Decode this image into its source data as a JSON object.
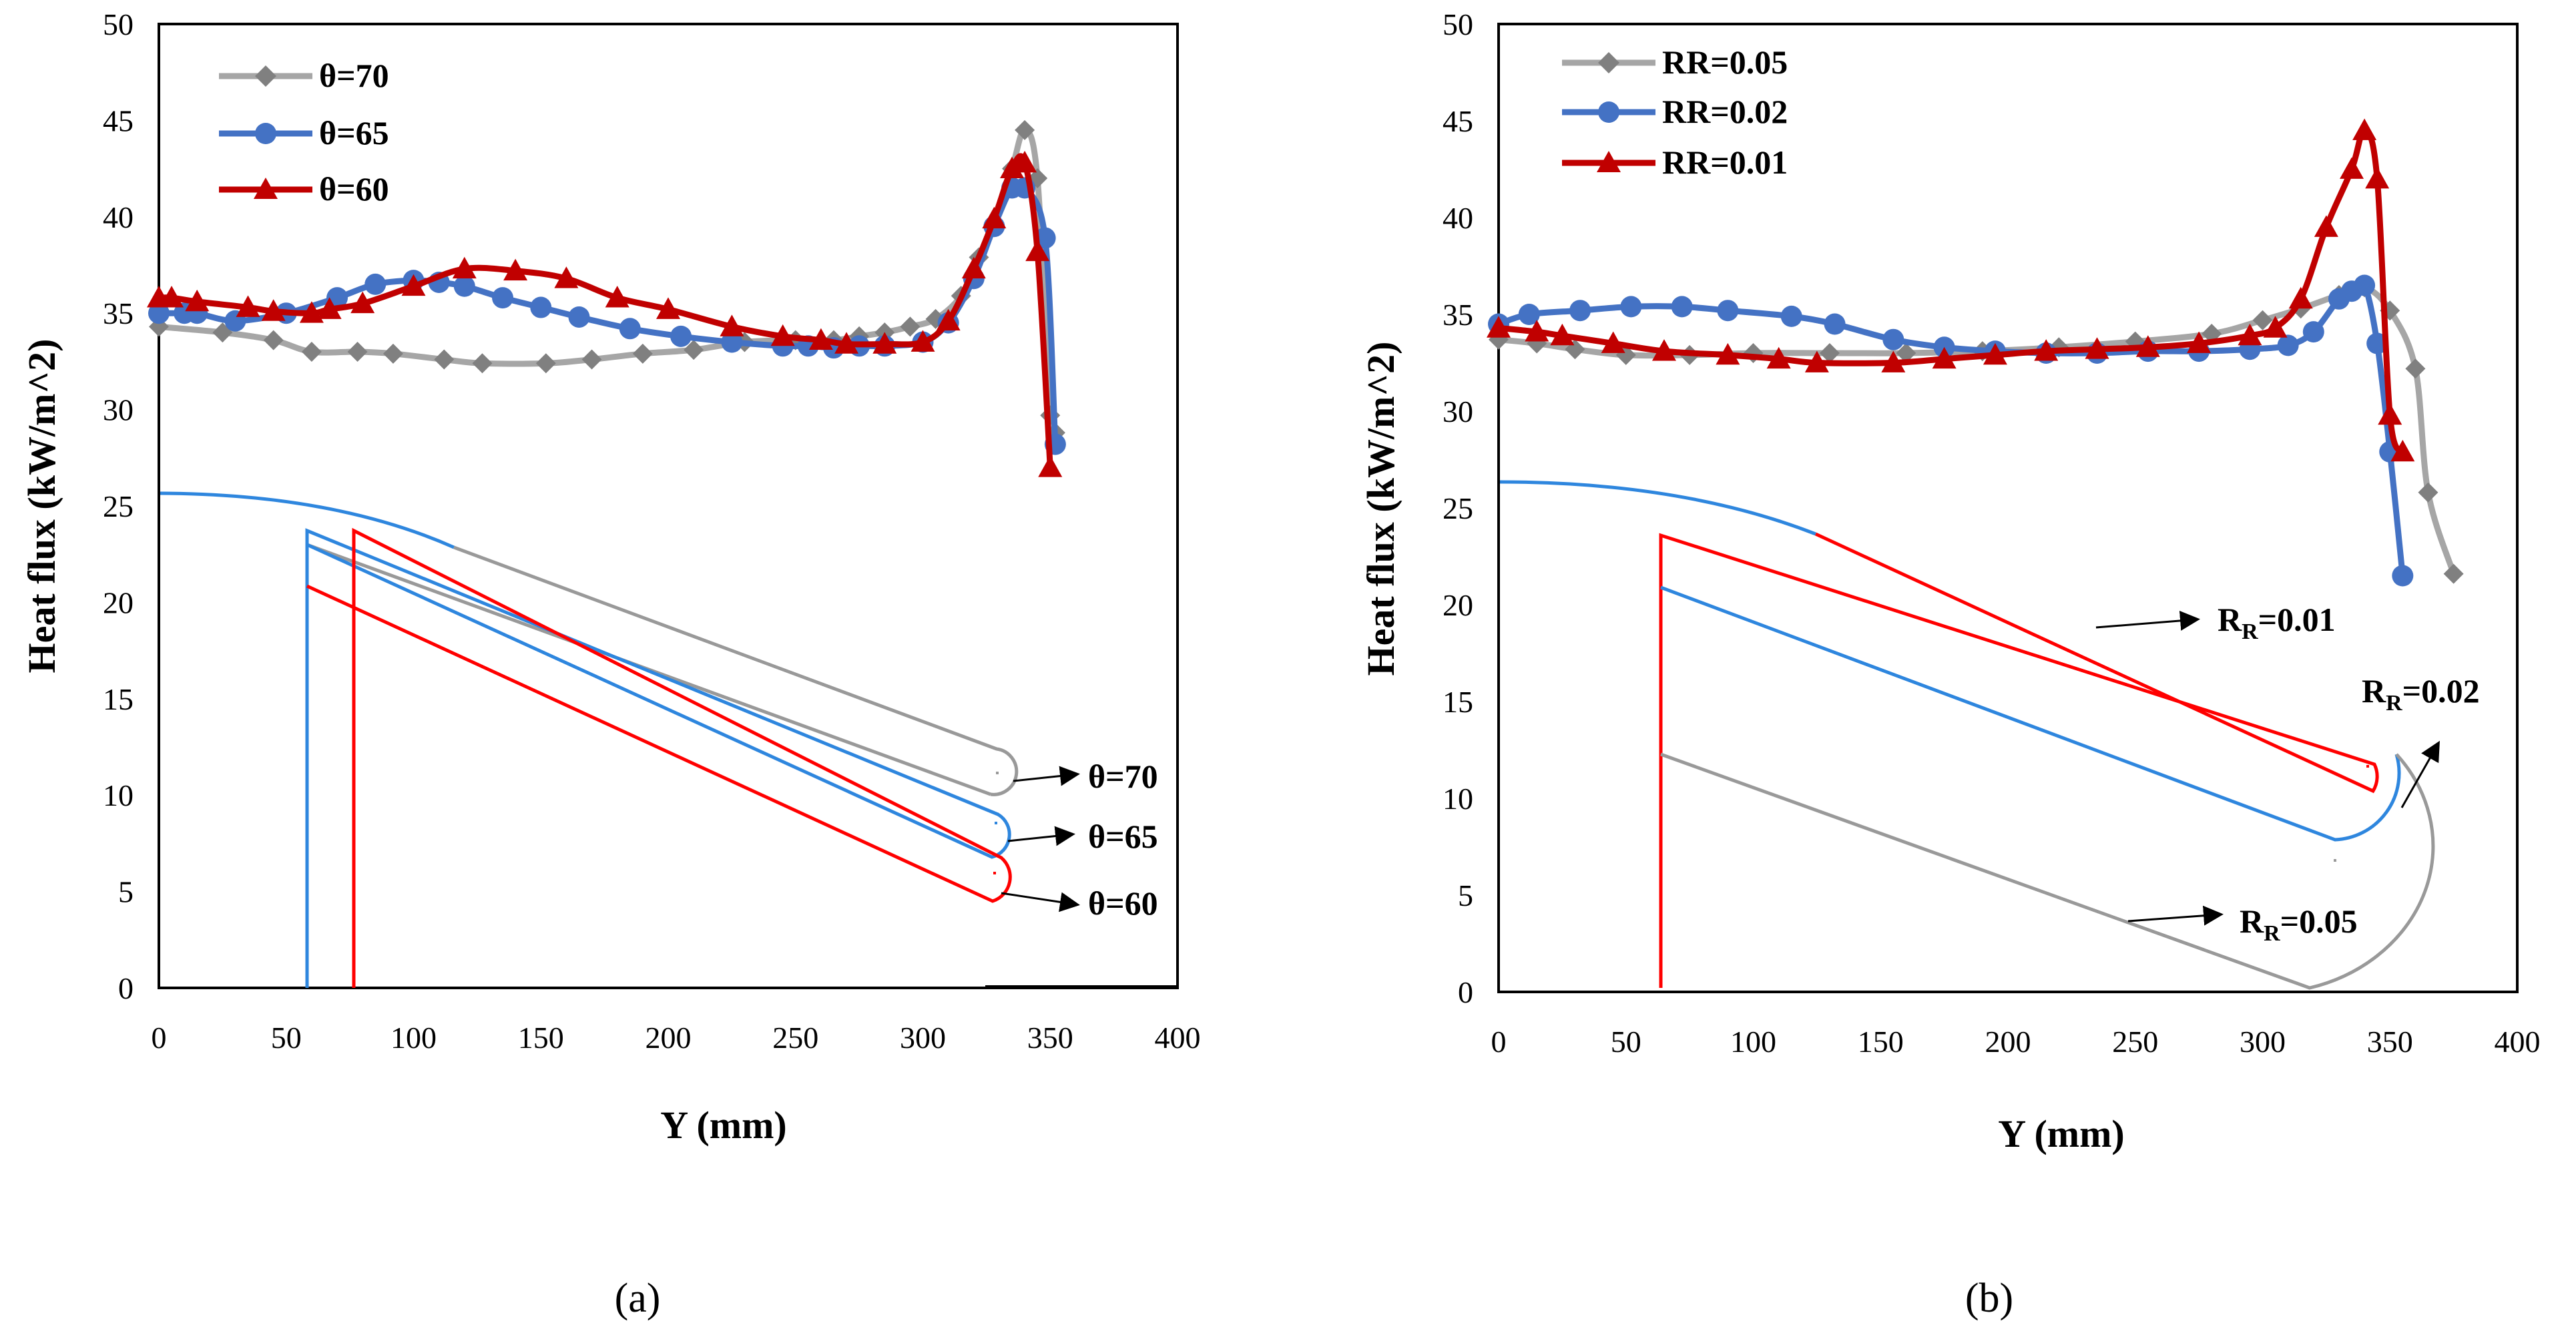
{
  "chart_data": [
    {
      "type": "line",
      "panel_label": "a",
      "caption": "(a)",
      "xlabel": "Y (mm)",
      "ylabel": "Heat flux (kW/m^2)",
      "xlim": [
        0,
        400
      ],
      "ylim": [
        0,
        50
      ],
      "xticks": [
        "0",
        "50",
        "100",
        "150",
        "200",
        "250",
        "300",
        "350",
        "400"
      ],
      "yticks": [
        "0",
        "5",
        "10",
        "15",
        "20",
        "25",
        "30",
        "35",
        "40",
        "45",
        "50"
      ],
      "legend_position": "top-left",
      "series": [
        {
          "name": "θ=70",
          "color": "#a6a6a6",
          "marker_color": "#808080",
          "marker": "diamond",
          "x": [
            0,
            25,
            45,
            60,
            78,
            92,
            112,
            127,
            152,
            170,
            190,
            210,
            230,
            250,
            265,
            275,
            285,
            295,
            305,
            315,
            322,
            328,
            335,
            340,
            345,
            350,
            352
          ],
          "y": [
            34.3,
            34.0,
            33.6,
            33.0,
            33.0,
            32.9,
            32.6,
            32.4,
            32.4,
            32.6,
            32.9,
            33.1,
            33.5,
            33.6,
            33.6,
            33.8,
            34.0,
            34.3,
            34.7,
            35.9,
            37.9,
            39.7,
            42.5,
            44.5,
            42.0,
            29.7,
            28.8
          ]
        },
        {
          "name": "θ=65",
          "color": "#4472c4",
          "marker_color": "#4472c4",
          "marker": "circle",
          "x": [
            0,
            10,
            15,
            30,
            50,
            70,
            85,
            100,
            110,
            120,
            135,
            150,
            165,
            185,
            205,
            225,
            245,
            255,
            265,
            275,
            285,
            300,
            310,
            320,
            328,
            335,
            340,
            348,
            352
          ],
          "y": [
            35.0,
            35.0,
            35.0,
            34.6,
            35.0,
            35.8,
            36.5,
            36.7,
            36.6,
            36.4,
            35.8,
            35.3,
            34.8,
            34.2,
            33.8,
            33.5,
            33.3,
            33.3,
            33.2,
            33.3,
            33.3,
            33.5,
            34.5,
            36.8,
            39.5,
            41.5,
            41.5,
            38.9,
            28.2
          ]
        },
        {
          "name": "θ=60",
          "color": "#c00000",
          "marker_color": "#c00000",
          "marker": "triangle",
          "x": [
            0,
            5,
            15,
            35,
            45,
            60,
            67,
            80,
            100,
            120,
            140,
            160,
            180,
            200,
            225,
            245,
            260,
            270,
            285,
            300,
            310,
            320,
            328,
            335,
            340,
            345,
            350
          ],
          "y": [
            35.8,
            35.8,
            35.6,
            35.3,
            35.1,
            35.0,
            35.2,
            35.5,
            36.4,
            37.3,
            37.2,
            36.8,
            35.8,
            35.2,
            34.3,
            33.8,
            33.6,
            33.4,
            33.4,
            33.5,
            34.6,
            37.3,
            39.9,
            42.5,
            42.8,
            38.2,
            27.0
          ]
        }
      ],
      "inset_annotations": [
        "θ=70",
        "θ=65",
        "θ=60"
      ]
    },
    {
      "type": "line",
      "panel_label": "b",
      "caption": "(b)",
      "xlabel": "Y (mm)",
      "ylabel": "Heat flux (kW/m^2)",
      "xlim": [
        0,
        400
      ],
      "ylim": [
        0,
        50
      ],
      "xticks": [
        "0",
        "50",
        "100",
        "150",
        "200",
        "250",
        "300",
        "350",
        "400"
      ],
      "yticks": [
        "0",
        "5",
        "10",
        "15",
        "20",
        "25",
        "30",
        "35",
        "40",
        "45",
        "50"
      ],
      "legend_position": "top-left",
      "series": [
        {
          "name": "RR=0.05",
          "color": "#a6a6a6",
          "marker_color": "#808080",
          "marker": "diamond",
          "x": [
            0,
            15,
            30,
            50,
            75,
            100,
            130,
            160,
            190,
            220,
            250,
            280,
            300,
            315,
            330,
            340,
            350,
            360,
            365,
            375
          ],
          "y": [
            33.7,
            33.5,
            33.2,
            32.9,
            32.9,
            33.0,
            33.0,
            33.0,
            33.1,
            33.3,
            33.6,
            34.0,
            34.7,
            35.3,
            36.0,
            36.4,
            35.2,
            32.2,
            25.8,
            21.6
          ]
        },
        {
          "name": "RR=0.02",
          "color": "#4472c4",
          "marker_color": "#4472c4",
          "marker": "circle",
          "x": [
            0,
            12,
            32,
            52,
            72,
            90,
            115,
            132,
            155,
            175,
            195,
            215,
            235,
            255,
            275,
            295,
            310,
            320,
            330,
            335,
            340,
            345,
            350,
            355
          ],
          "y": [
            34.5,
            35.0,
            35.2,
            35.4,
            35.4,
            35.2,
            34.9,
            34.5,
            33.7,
            33.3,
            33.1,
            33.0,
            33.0,
            33.1,
            33.1,
            33.2,
            33.4,
            34.1,
            35.8,
            36.2,
            36.5,
            33.5,
            27.9,
            21.5
          ]
        },
        {
          "name": "RR=0.01",
          "color": "#c00000",
          "marker_color": "#c00000",
          "marker": "triangle",
          "x": [
            0,
            15,
            25,
            45,
            65,
            90,
            110,
            125,
            155,
            175,
            195,
            215,
            235,
            255,
            275,
            295,
            305,
            315,
            325,
            335,
            340,
            345,
            350,
            355
          ],
          "y": [
            34.3,
            34.1,
            33.9,
            33.5,
            33.1,
            32.9,
            32.7,
            32.5,
            32.5,
            32.7,
            32.9,
            33.1,
            33.2,
            33.3,
            33.5,
            33.9,
            34.3,
            35.8,
            39.5,
            42.5,
            44.5,
            42.0,
            29.8,
            27.9
          ]
        }
      ],
      "inset_annotations": [
        "R_R=0.01",
        "R_R=0.02",
        "R_R=0.05"
      ]
    }
  ]
}
